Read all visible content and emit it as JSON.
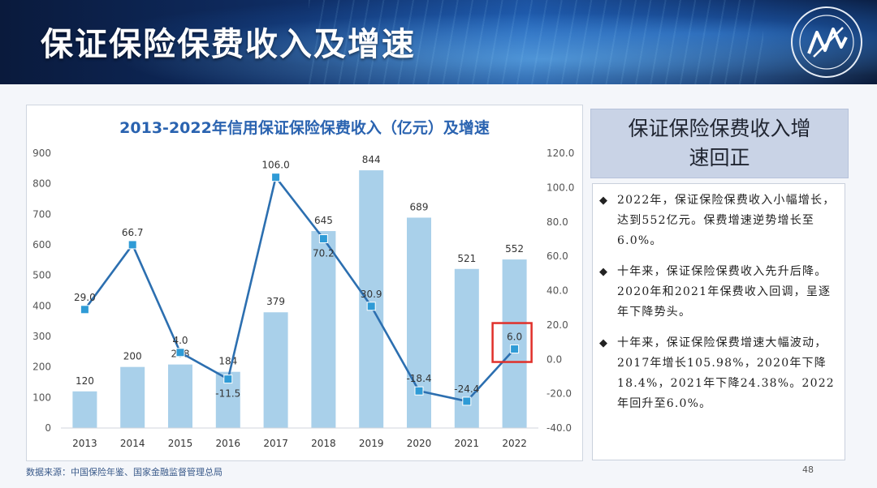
{
  "header": {
    "title": "保证保险保费收入及增速"
  },
  "chart_data": {
    "type": "bar",
    "title": "2013-2022年信用保证保险保费收入（亿元）及增速",
    "categories": [
      "2013",
      "2014",
      "2015",
      "2016",
      "2017",
      "2018",
      "2019",
      "2020",
      "2021",
      "2022"
    ],
    "series": [
      {
        "type": "bar",
        "values": [
          120,
          200,
          208,
          184,
          379,
          645,
          844,
          689,
          521,
          552
        ]
      },
      {
        "type": "line",
        "values": [
          29.0,
          66.7,
          4.0,
          -11.5,
          106.0,
          70.2,
          30.9,
          -18.4,
          -24.4,
          6.0
        ]
      }
    ],
    "bar_labels": [
      "120",
      "200",
      "208",
      "184",
      "379",
      "645",
      "844",
      "689",
      "521",
      "552"
    ],
    "line_labels": [
      "29.0",
      "66.7",
      "4.0",
      "-11.5",
      "106.0",
      "70.2",
      "30.9",
      "-18.4",
      "-24.4",
      "6.0"
    ],
    "ylim_left": [
      0,
      900
    ],
    "yticks_left": [
      "0",
      "100",
      "200",
      "300",
      "400",
      "500",
      "600",
      "700",
      "800",
      "900"
    ],
    "ylim_right": [
      -40,
      120
    ],
    "yticks_right": [
      "-40.0",
      "-20.0",
      "0.0",
      "20.0",
      "40.0",
      "60.0",
      "80.0",
      "100.0",
      "120.0"
    ],
    "highlight_category": "2022",
    "colors": {
      "bar": "#a9d0ea",
      "line": "#2c6fb0",
      "marker": "#2f9bd6",
      "highlight": "#e0302a",
      "title": "#2a63b0"
    }
  },
  "panel": {
    "heading": "保证保险保费收入增速回正",
    "bullets": [
      "2022年，保证保险保费收入小幅增长，达到552亿元。保费增速逆势增长至6.0%。",
      "十年来，保证保险保费收入先升后降。2020年和2021年保费收入回调，呈逐年下降势头。",
      "十年来，保证保险保费增速大幅波动，2017年增长105.98%，2020年下降18.4%，2021年下降24.38%。2022年回升至6.0%。"
    ],
    "bullet_symbol": "◆"
  },
  "footer": {
    "source": "数据来源：中国保险年鉴、国家金融监督管理总局",
    "page": "48"
  }
}
